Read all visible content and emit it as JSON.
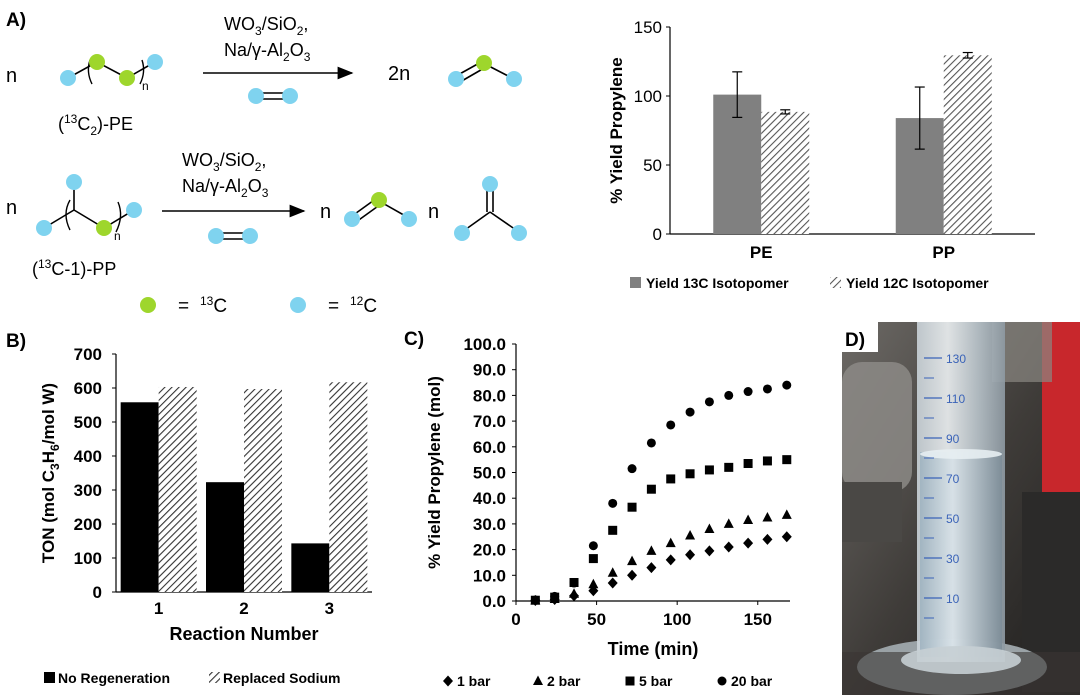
{
  "panel_labels": {
    "a": "A)",
    "b": "B)",
    "c": "C)",
    "d": "D)"
  },
  "scheme": {
    "n": "n",
    "two_n": "2n",
    "cat1": "WO",
    "cat1_sub": "3",
    "cat1_rest": "/SiO",
    "cat1_sub2": "2",
    "cat1_comma": ",",
    "cat2": "Na/γ-Al",
    "cat2_sub": "2",
    "cat2_rest": "O",
    "cat2_sub2": "3",
    "pe_label_open": "(",
    "pe_label_sup": "13",
    "pe_label_mid": "C",
    "pe_label_sub": "2",
    "pe_label_end": ")-PE",
    "pp_label_open": "(",
    "pp_label_sup": "13",
    "pp_label_end": "C-1)-PP",
    "legend_eq": "=",
    "legend_13c_sup": "13",
    "legend_13c": "C",
    "legend_12c_sup": "12",
    "legend_12c": "C",
    "colors": {
      "c13": "#9ed62c",
      "c12": "#7fd3ef"
    }
  },
  "chart_data": [
    {
      "id": "A",
      "type": "bar",
      "title": "",
      "ylabel": "% Yield Propylene",
      "xlabel": "",
      "categories": [
        "PE",
        "PP"
      ],
      "ylim": [
        0,
        150
      ],
      "yticks": [
        0,
        50,
        100,
        150
      ],
      "series": [
        {
          "name": "Yield 13C Isotopomer",
          "values": [
            101,
            84
          ],
          "errors": [
            16.5,
            22.5
          ],
          "pattern": "solid",
          "color": "#808080"
        },
        {
          "name": "Yield 12C Isotopomer",
          "values": [
            88.5,
            129.5
          ],
          "errors": [
            1.5,
            2
          ],
          "pattern": "hatch",
          "color": "#555555"
        }
      ],
      "legend": "bottom"
    },
    {
      "id": "B",
      "type": "bar",
      "title": "",
      "ylabel_parts": [
        "TON (mol C",
        "3",
        "H",
        "6",
        "/mol W)"
      ],
      "xlabel": "Reaction Number",
      "categories": [
        "1",
        "2",
        "3"
      ],
      "ylim": [
        0,
        700
      ],
      "yticks": [
        0,
        100,
        200,
        300,
        400,
        500,
        600,
        700
      ],
      "series": [
        {
          "name": "No Regeneration",
          "values": [
            558,
            323,
            143
          ],
          "pattern": "solid",
          "color": "#000000"
        },
        {
          "name": "Replaced Sodium",
          "values": [
            603,
            597,
            617
          ],
          "pattern": "hatch",
          "color": "#333333"
        }
      ],
      "legend": "bottom"
    },
    {
      "id": "C",
      "type": "scatter",
      "title": "",
      "ylabel": "% Yield Propylene (mol)",
      "xlabel": "Time (min)",
      "xlim": [
        0,
        170
      ],
      "xticks": [
        0,
        50,
        100,
        150
      ],
      "ylim": [
        0,
        100
      ],
      "yticks": [
        "0.0",
        "10.0",
        "20.0",
        "30.0",
        "40.0",
        "50.0",
        "60.0",
        "70.0",
        "80.0",
        "90.0",
        "100.0"
      ],
      "x": [
        12,
        24,
        36,
        48,
        60,
        72,
        84,
        96,
        108,
        120,
        132,
        144,
        156,
        168
      ],
      "series": [
        {
          "name": "1 bar",
          "marker": "diamond",
          "values": [
            0.2,
            0.6,
            2.0,
            4.0,
            7.0,
            10.0,
            13.0,
            16.0,
            18.0,
            19.5,
            21.0,
            22.5,
            24.0,
            25.0
          ]
        },
        {
          "name": "2 bar",
          "marker": "triangle",
          "values": [
            0.2,
            0.8,
            2.8,
            6.5,
            11.0,
            15.5,
            19.5,
            22.5,
            25.5,
            28.0,
            30.0,
            31.5,
            32.5,
            33.5
          ]
        },
        {
          "name": "5 bar",
          "marker": "square",
          "values": [
            0.3,
            1.5,
            7.2,
            16.5,
            27.5,
            36.5,
            43.5,
            47.5,
            49.5,
            51.0,
            52.0,
            53.5,
            54.5,
            55.0
          ]
        },
        {
          "name": "20 bar",
          "marker": "circle",
          "values": [
            0.4,
            1.8,
            7.0,
            21.5,
            38.0,
            51.5,
            61.5,
            68.5,
            73.5,
            77.5,
            80.0,
            81.5,
            82.5,
            84.0
          ]
        }
      ],
      "legend": "bottom"
    }
  ],
  "photo": {
    "cylinder_marks": [
      "130",
      "110",
      "90",
      "70",
      "50",
      "30",
      "10"
    ]
  }
}
